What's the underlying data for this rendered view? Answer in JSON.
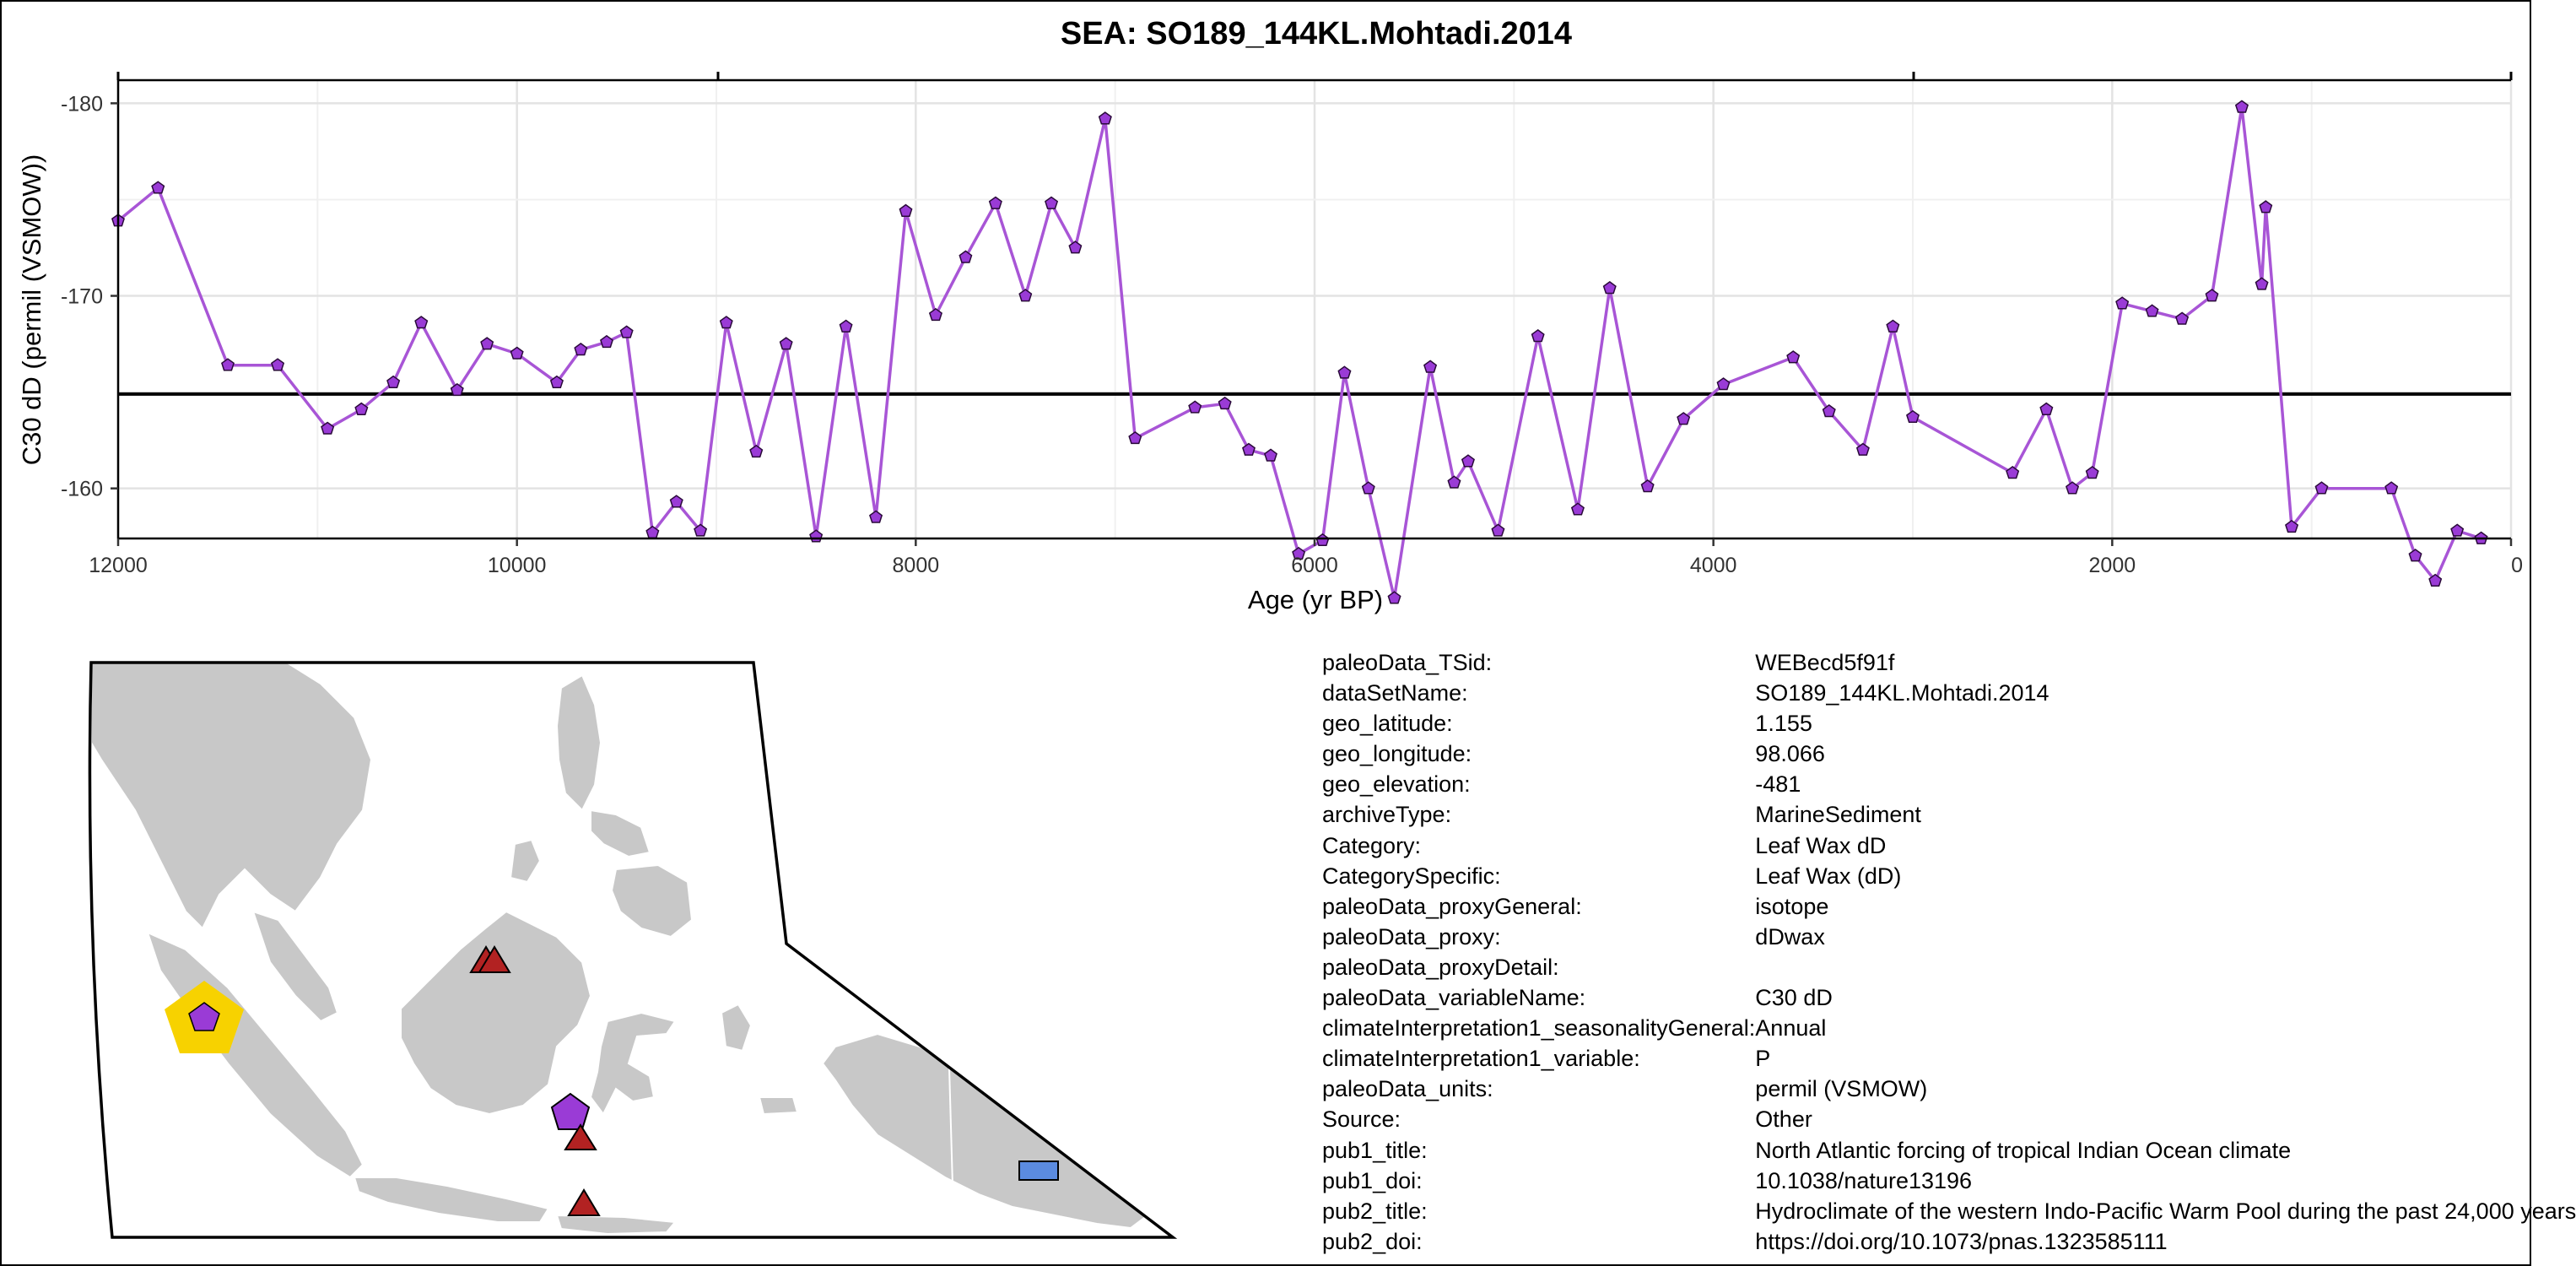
{
  "chart_data": {
    "type": "line",
    "title": "SEA: SO189_144KL.Mohtadi.2014",
    "xlabel": "Age (yr BP)",
    "ylabel": "C30 dD (permil (VSMOW))",
    "xlim": [
      12000,
      0
    ],
    "ylim": [
      -157.4,
      -181.2
    ],
    "x_reversed": true,
    "y_reversed": true,
    "x_ticks": [
      12000,
      10000,
      8000,
      6000,
      4000,
      2000,
      0
    ],
    "y_ticks": [
      -160,
      -170,
      -180
    ],
    "hline": -164.9,
    "grid": true,
    "series": [
      {
        "color": "#a855d6",
        "marker_color": "#9a3bd6",
        "x": [
          12000,
          11800,
          11450,
          11200,
          10950,
          10780,
          10620,
          10480,
          10300,
          10150,
          10000,
          9800,
          9680,
          9550,
          9450,
          9320,
          9200,
          9080,
          8950,
          8800,
          8650,
          8500,
          8350,
          8200,
          8050,
          7900,
          7750,
          7600,
          7450,
          7320,
          7200,
          7050,
          6900,
          6600,
          6450,
          6330,
          6220,
          6080,
          5960,
          5850,
          5730,
          5600,
          5420,
          5300,
          5230,
          5080,
          4880,
          4680,
          4520,
          4330,
          4150,
          3950,
          3600,
          3420,
          3250,
          3100,
          3000,
          2500,
          2330,
          2200,
          2100,
          1950,
          1800,
          1650,
          1500,
          1350,
          1250,
          1230,
          1100,
          950,
          600,
          480,
          380,
          270,
          150
        ],
        "y": [
          -173.9,
          -175.6,
          -166.4,
          -166.4,
          -163.1,
          -164.1,
          -165.5,
          -168.6,
          -165.1,
          -167.5,
          -167.0,
          -165.5,
          -167.2,
          -167.6,
          -168.1,
          -157.7,
          -159.3,
          -157.8,
          -168.6,
          -161.9,
          -167.5,
          -157.5,
          -168.4,
          -158.5,
          -174.4,
          -169.0,
          -172.0,
          -174.8,
          -170.0,
          -174.8,
          -172.5,
          -179.2,
          -162.6,
          -164.2,
          -164.4,
          -162.0,
          -161.7,
          -156.6,
          -157.3,
          -166.0,
          -160.0,
          -154.3,
          -166.3,
          -160.3,
          -161.4,
          -157.8,
          -167.9,
          -158.9,
          -170.4,
          -160.1,
          -163.6,
          -165.4,
          -166.8,
          -164.0,
          -162.0,
          -168.4,
          -163.7,
          -160.8,
          -164.1,
          -160.0,
          -160.8,
          -169.6,
          -169.2,
          -168.8,
          -170.0,
          -179.8,
          -170.6,
          -174.6,
          -158.0,
          -160.0,
          -160.0,
          -156.5,
          -155.2,
          -157.8,
          -157.4
        ]
      }
    ]
  },
  "metadata": [
    {
      "key": "paleoData_TSid:",
      "value": "WEBecd5f91f"
    },
    {
      "key": "dataSetName:",
      "value": "SO189_144KL.Mohtadi.2014"
    },
    {
      "key": "geo_latitude:",
      "value": "1.155"
    },
    {
      "key": "geo_longitude:",
      "value": "98.066"
    },
    {
      "key": "geo_elevation:",
      "value": "-481"
    },
    {
      "key": "archiveType:",
      "value": "MarineSediment"
    },
    {
      "key": "Category:",
      "value": "Leaf Wax dD"
    },
    {
      "key": "CategorySpecific:",
      "value": "Leaf Wax (dD)"
    },
    {
      "key": "paleoData_proxyGeneral:",
      "value": "isotope"
    },
    {
      "key": "paleoData_proxy:",
      "value": "dDwax"
    },
    {
      "key": "paleoData_proxyDetail:",
      "value": ""
    },
    {
      "key": "paleoData_variableName:",
      "value": "C30 dD"
    },
    {
      "key": "climateInterpretation1_seasonalityGeneral:",
      "value": "Annual"
    },
    {
      "key": "climateInterpretation1_variable:",
      "value": "P"
    },
    {
      "key": "paleoData_units:",
      "value": "permil (VSMOW)"
    },
    {
      "key": "Source:",
      "value": "Other"
    },
    {
      "key": "pub1_title:",
      "value": "North Atlantic forcing of tropical Indian Ocean climate"
    },
    {
      "key": "pub1_doi:",
      "value": "10.1038/nature13196"
    },
    {
      "key": "pub2_title:",
      "value": "Hydroclimate of the western Indo-Pacific Warm Pool during the past 24,000 years"
    },
    {
      "key": "pub2_doi:",
      "value": "https://doi.org/10.1073/pnas.1323585111"
    }
  ],
  "map": {
    "land_color": "#c8c8c8",
    "border_color": "#ffffff",
    "site_highlight_color": "#f7d200",
    "site_color": "#9a3bd6",
    "triangle_color": "#b22222",
    "rect_color": "#5b8be0",
    "markers": [
      {
        "shape": "pentagon-highlight"
      },
      {
        "shape": "triangle"
      },
      {
        "shape": "triangle"
      },
      {
        "shape": "pentagon"
      },
      {
        "shape": "triangle"
      },
      {
        "shape": "triangle"
      },
      {
        "shape": "rect"
      }
    ]
  }
}
